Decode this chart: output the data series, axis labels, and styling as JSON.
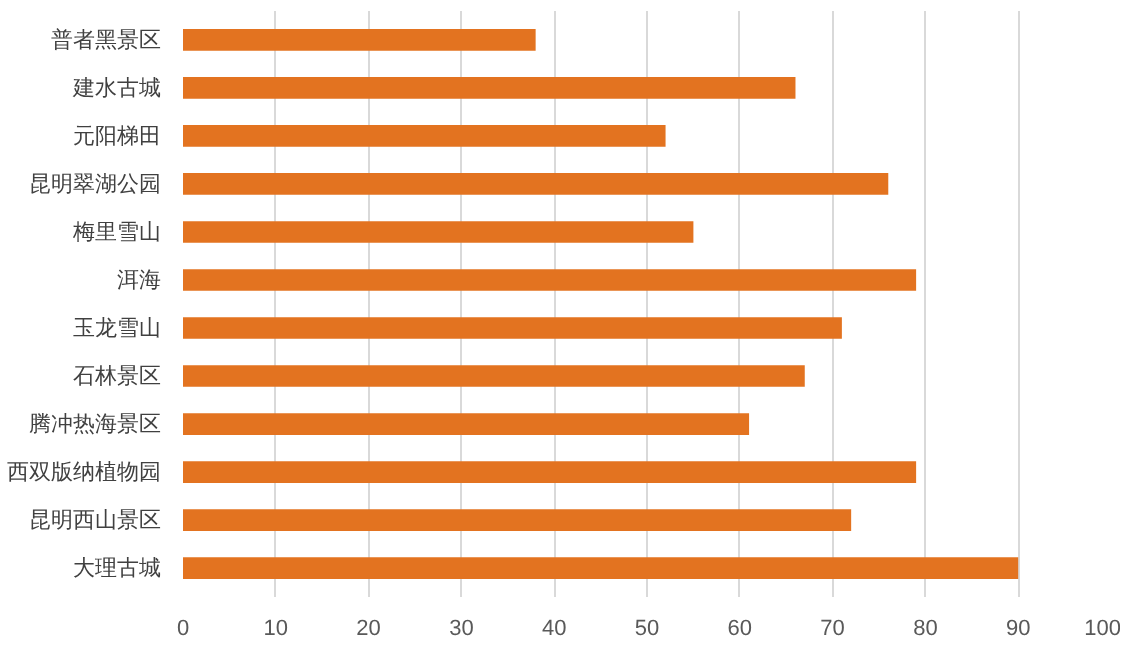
{
  "chart_data": {
    "type": "bar",
    "orientation": "horizontal",
    "categories": [
      "普者黑景区",
      "建水古城",
      "元阳梯田",
      "昆明翠湖公园",
      "梅里雪山",
      "洱海",
      "玉龙雪山",
      "石林景区",
      "腾冲热海景区",
      "西双版纳植物园",
      "昆明西山景区",
      "大理古城"
    ],
    "values": [
      38,
      66,
      52,
      76,
      55,
      79,
      71,
      67,
      61,
      79,
      72,
      90
    ],
    "color": "#e37320",
    "xlim": [
      0,
      100
    ],
    "xticks": [
      0,
      10,
      20,
      30,
      40,
      50,
      60,
      70,
      80,
      90,
      100
    ],
    "grid": "x"
  }
}
